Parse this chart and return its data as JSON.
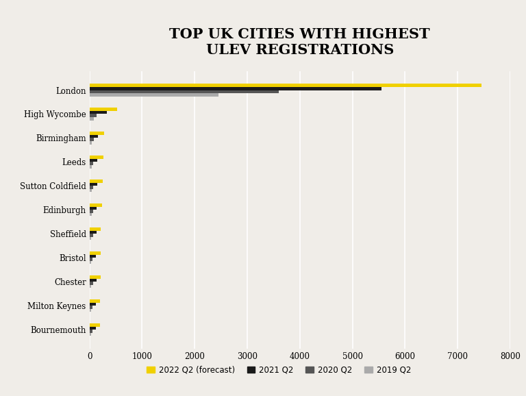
{
  "title": "TOP UK CITIES WITH HIGHEST\nULEV REGISTRATIONS",
  "background_color": "#f0ede8",
  "categories": [
    "London",
    "High Wycombe",
    "Birmingham",
    "Leeds",
    "Sutton Coldfield",
    "Edinburgh",
    "Sheffield",
    "Bristol",
    "Chester",
    "Milton Keynes",
    "Bournemouth"
  ],
  "series": {
    "2022 Q2 (forecast)": [
      7450,
      530,
      280,
      270,
      255,
      245,
      215,
      210,
      220,
      205,
      195
    ],
    "2021 Q2": [
      5550,
      330,
      165,
      155,
      145,
      140,
      130,
      125,
      130,
      125,
      120
    ],
    "2020 Q2": [
      3600,
      130,
      80,
      75,
      70,
      70,
      65,
      60,
      65,
      60,
      55
    ],
    "2019 Q2": [
      2450,
      80,
      50,
      45,
      40,
      40,
      38,
      35,
      38,
      35,
      32
    ]
  },
  "colors": {
    "2022 Q2 (forecast)": "#f0d000",
    "2021 Q2": "#1a1a1a",
    "2020 Q2": "#555555",
    "2019 Q2": "#aaaaaa"
  },
  "xlim": [
    0,
    8000
  ],
  "xticks": [
    0,
    1000,
    2000,
    3000,
    4000,
    5000,
    6000,
    7000,
    8000
  ],
  "title_fontsize": 15,
  "legend_fontsize": 8.5
}
